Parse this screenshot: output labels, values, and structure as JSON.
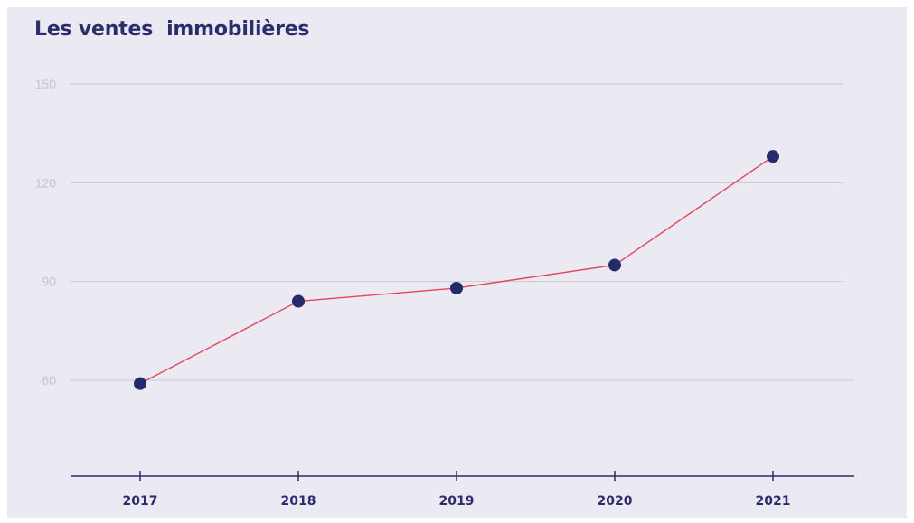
{
  "chart_data": {
    "type": "line",
    "title": "Les ventes  immobilières",
    "xlabel": "",
    "ylabel": "",
    "categories": [
      "2017",
      "2018",
      "2019",
      "2020",
      "2021"
    ],
    "series": [
      {
        "values": [
          59,
          84,
          88,
          95,
          128
        ]
      }
    ],
    "yticks": [
      60,
      90,
      120,
      150
    ],
    "ytick_labels": [
      "60",
      "90",
      "120",
      "150"
    ],
    "ylim": [
      30,
      150
    ],
    "grid": true,
    "legend": "none"
  },
  "colors": {
    "background": "#ebeaf2",
    "title": "#2b2d6e",
    "grid": "#c9c8d4",
    "axis": "#2b2d6e",
    "line": "#e3475d",
    "marker": "#252a6a",
    "ytick_text": "#c3c4cf",
    "xtick_text": "#2b2d6e"
  }
}
